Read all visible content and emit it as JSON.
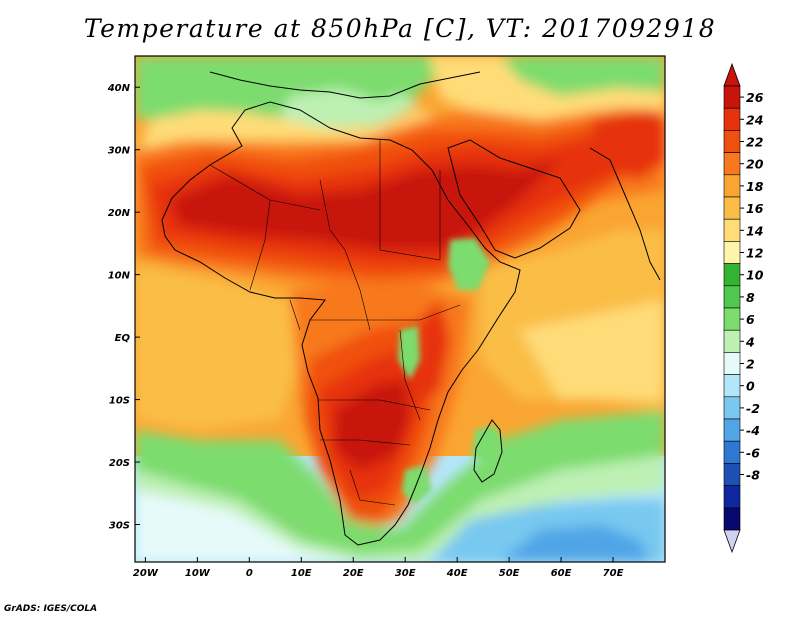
{
  "title": "Temperature at 850hPa [C], VT: 2017092918",
  "credit": "GrADS: IGES/COLA",
  "map": {
    "lon_range": [
      -22,
      80
    ],
    "lat_range": [
      -36,
      45
    ],
    "lon_ticks": [
      {
        "value": -20,
        "label": "20W"
      },
      {
        "value": -10,
        "label": "10W"
      },
      {
        "value": 0,
        "label": "0"
      },
      {
        "value": 10,
        "label": "10E"
      },
      {
        "value": 20,
        "label": "20E"
      },
      {
        "value": 30,
        "label": "30E"
      },
      {
        "value": 40,
        "label": "40E"
      },
      {
        "value": 50,
        "label": "50E"
      },
      {
        "value": 60,
        "label": "60E"
      },
      {
        "value": 70,
        "label": "70E"
      }
    ],
    "lat_ticks": [
      {
        "value": 40,
        "label": "40N"
      },
      {
        "value": 30,
        "label": "30N"
      },
      {
        "value": 20,
        "label": "20N"
      },
      {
        "value": 10,
        "label": "10N"
      },
      {
        "value": 0,
        "label": "EQ"
      },
      {
        "value": -10,
        "label": "10S"
      },
      {
        "value": -20,
        "label": "20S"
      },
      {
        "value": -30,
        "label": "30S"
      }
    ]
  },
  "colorbar": {
    "labels": [
      "26",
      "24",
      "22",
      "20",
      "18",
      "16",
      "14",
      "12",
      "10",
      "8",
      "6",
      "4",
      "2",
      "0",
      "-2",
      "-4",
      "-6",
      "-8"
    ],
    "colors": [
      "#c8140a",
      "#e6320f",
      "#f0500f",
      "#f8781e",
      "#faa532",
      "#fabe46",
      "#ffdc78",
      "#fff5aa",
      "#32b432",
      "#50c850",
      "#7ddc6e",
      "#bef0b4",
      "#e6fafa",
      "#b4e6fa",
      "#78c8f0",
      "#50a5e6",
      "#2d78d2",
      "#1e50b4",
      "#0f28a0",
      "#08086e"
    ],
    "top_color": "#c8140a",
    "bottom_color": "#d2d2f0"
  },
  "field_colors": {
    "hot_core": "#c8140a",
    "hot": "#e6320f",
    "warm": "#f0500f",
    "orange": "#f8781e",
    "light_orange": "#faa532",
    "tan": "#fabe46",
    "yellow": "#ffdc78",
    "green": "#32b432",
    "light_green": "#7ddc6e",
    "pale_green": "#bef0b4",
    "pale_cyan": "#e6fafa",
    "light_blue": "#b4e6fa",
    "blue": "#78c8f0",
    "mid_blue": "#50a5e6"
  }
}
